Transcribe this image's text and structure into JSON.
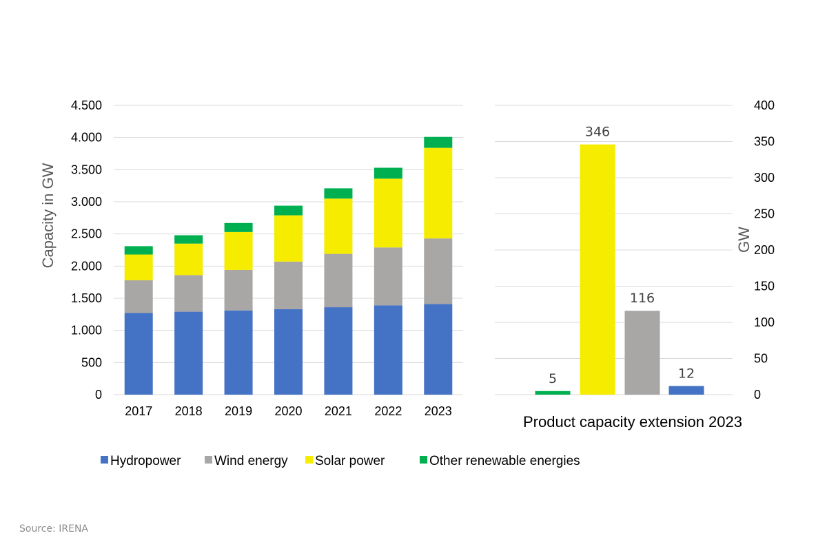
{
  "chart_data": [
    {
      "type": "bar",
      "stacked": true,
      "categories": [
        "2017",
        "2018",
        "2019",
        "2020",
        "2021",
        "2022",
        "2023"
      ],
      "ylabel": "Capacity in GW",
      "ylim": [
        0,
        4500
      ],
      "yticks": [
        0,
        500,
        1000,
        1500,
        2000,
        2500,
        3000,
        3500,
        4000,
        4500
      ],
      "ytick_labels": [
        "0",
        "500",
        "1.000",
        "1.500",
        "2.000",
        "2.500",
        "3.000",
        "3.500",
        "4.000",
        "4.500"
      ],
      "grid": true,
      "legend": "bottom",
      "series": [
        {
          "name": "Hydropower",
          "color": "#4472c4",
          "values": [
            1270,
            1290,
            1310,
            1330,
            1360,
            1390,
            1410
          ]
        },
        {
          "name": "Wind energy",
          "color": "#a9a6a6",
          "values": [
            510,
            570,
            630,
            740,
            830,
            900,
            1020
          ]
        },
        {
          "name": "Solar power",
          "color": "#f5ec00",
          "values": [
            400,
            490,
            590,
            720,
            860,
            1070,
            1410
          ]
        },
        {
          "name": "Other renewable energies",
          "color": "#00b050",
          "values": [
            130,
            130,
            140,
            150,
            160,
            170,
            170
          ]
        }
      ]
    },
    {
      "type": "bar",
      "xlabel": "Product capacity extension 2023",
      "ylabel": "GW",
      "ylim": [
        0,
        400
      ],
      "yticks": [
        0,
        50,
        100,
        150,
        200,
        250,
        300,
        350,
        400
      ],
      "ytick_labels": [
        "0",
        "50",
        "100",
        "150",
        "200",
        "250",
        "300",
        "350",
        "400"
      ],
      "grid": true,
      "yaxis_side": "right",
      "bars": [
        {
          "value": 5,
          "label": "5",
          "color": "#00b050"
        },
        {
          "value": 346,
          "label": "346",
          "color": "#f5ec00"
        },
        {
          "value": 116,
          "label": "116",
          "color": "#a9a6a6"
        },
        {
          "value": 12,
          "label": "12",
          "color": "#4472c4"
        }
      ]
    }
  ],
  "source": "Source: IRENA"
}
